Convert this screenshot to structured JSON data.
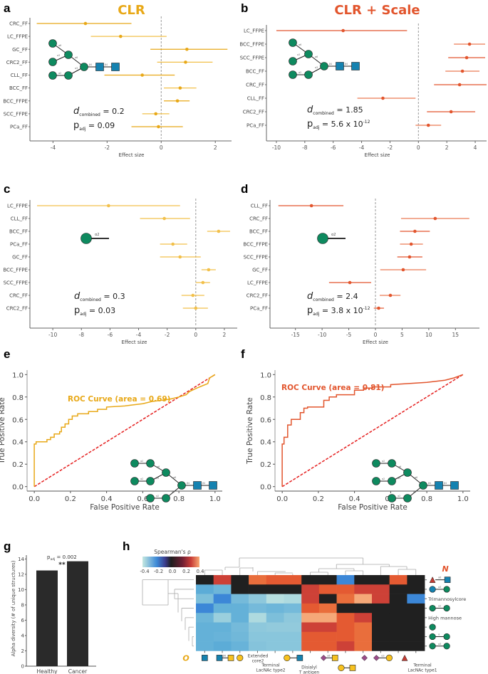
{
  "panels": {
    "a": "a",
    "b": "b",
    "c": "c",
    "d": "d",
    "e": "e",
    "f": "f",
    "g": "g",
    "h": "h"
  },
  "colors": {
    "clr": "#E8A817",
    "clr_light": "#F2C04A",
    "scale": "#E2552D",
    "scale_light": "#EA7A55",
    "glycan_green": "#0E8A5F",
    "glycan_blue": "#1582B0",
    "glycan_yellow": "#F7C21F",
    "glycan_purple": "#9B4C8A",
    "glycan_red": "#C23A32",
    "diag_red": "#E51F1F"
  },
  "chart_data": [
    {
      "id": "a",
      "type": "forest",
      "title": "CLR",
      "xlabel": "Effect size",
      "xlim": [
        -4.8,
        2.6
      ],
      "xticks": [
        -4,
        -2,
        0,
        2
      ],
      "categories": [
        "CRC_FF",
        "LC_FFPE",
        "GC_FF",
        "CRC2_FF",
        "CLL_FF",
        "BCC_FF",
        "BCC_FFPE",
        "SCC_FFPE",
        "PCa_FF"
      ],
      "estimate": [
        -2.8,
        -1.5,
        0.95,
        0.9,
        -0.7,
        0.7,
        0.6,
        -0.2,
        -0.1
      ],
      "ci_low": [
        -4.6,
        -2.6,
        -0.4,
        -0.15,
        -2.1,
        0.1,
        0.1,
        -0.7,
        -1.1
      ],
      "ci_high": [
        -1.1,
        0.2,
        2.45,
        1.9,
        0.5,
        1.3,
        1.05,
        0.3,
        0.8
      ],
      "d_combined": "0.2",
      "p_adj": "0.09",
      "p_adj_exp": ""
    },
    {
      "id": "b",
      "type": "forest",
      "title": "CLR + Scale",
      "xlabel": "Effect size",
      "xlim": [
        -10.6,
        4.8
      ],
      "xticks": [
        -10,
        -8,
        -6,
        -4,
        -2,
        0,
        2,
        4
      ],
      "categories": [
        "LC_FFPE",
        "BCC_FFPE",
        "SCC_FFPE",
        "BCC_FF",
        "CRC_FF",
        "CLL_FF",
        "CRC2_FF",
        "PCa_FF"
      ],
      "estimate": [
        -5.3,
        3.6,
        3.4,
        3.1,
        2.9,
        -2.5,
        2.3,
        0.7
      ],
      "ci_low": [
        -10.0,
        2.5,
        2.1,
        1.9,
        1.1,
        -4.3,
        0.6,
        -0.2
      ],
      "ci_high": [
        -0.8,
        4.7,
        4.7,
        4.3,
        4.8,
        -0.2,
        4.0,
        1.6
      ],
      "d_combined": "1.85",
      "p_adj": "5.6 x 10",
      "p_adj_exp": "-12"
    },
    {
      "id": "c",
      "type": "forest",
      "title": "",
      "xlabel": "Effect size",
      "xlim": [
        -11.5,
        2.9
      ],
      "xticks": [
        -10,
        -8,
        -6,
        -4,
        -2,
        0,
        2
      ],
      "categories": [
        "LC_FFPE",
        "CLL_FF",
        "BCC_FF",
        "PCa_FF",
        "GC_FF",
        "BCC_FFPE",
        "SCC_FFPE",
        "CRC_FF",
        "CRC2_FF"
      ],
      "estimate": [
        -6.1,
        -2.2,
        1.6,
        -1.6,
        -1.1,
        0.9,
        0.5,
        -0.2,
        0.0
      ],
      "ci_low": [
        -11.1,
        -3.9,
        0.8,
        -2.5,
        -2.5,
        0.4,
        0.0,
        -1.0,
        -0.9
      ],
      "ci_high": [
        -1.1,
        -0.4,
        2.4,
        -0.6,
        0.35,
        1.4,
        1.0,
        0.6,
        0.85
      ],
      "d_combined": "0.3",
      "p_adj": "0.03",
      "p_adj_exp": ""
    },
    {
      "id": "d",
      "type": "forest",
      "title": "",
      "xlabel": "Effect size",
      "xlim": [
        -19.5,
        19.5
      ],
      "xticks": [
        -15,
        -10,
        -5,
        0,
        5,
        10,
        15
      ],
      "categories": [
        "CLL_FF",
        "CRC_FF",
        "BCC_FF",
        "BCC_FFPE",
        "SCC_FFPE",
        "GC_FF",
        "LC_FFPE",
        "CRC2_FF",
        "PCa_FF"
      ],
      "estimate": [
        -12.0,
        11.2,
        7.4,
        6.7,
        6.4,
        5.2,
        -4.8,
        2.8,
        0.6
      ],
      "ci_low": [
        -18.2,
        4.8,
        4.6,
        4.6,
        4.1,
        0.9,
        -8.7,
        0.8,
        -0.3
      ],
      "ci_high": [
        -6.0,
        17.6,
        10.2,
        8.9,
        8.8,
        9.5,
        -0.8,
        4.7,
        1.6
      ],
      "d_combined": "2.4",
      "p_adj": "3.8 x 10",
      "p_adj_exp": "-12"
    },
    {
      "id": "e",
      "type": "line",
      "title": "",
      "xlabel": "False Positive Rate",
      "ylabel": "True Positive Rate",
      "xlim": [
        -0.04,
        1.04
      ],
      "ylim": [
        -0.04,
        1.04
      ],
      "xticks": [
        "0.0",
        "0.2",
        "0.4",
        "0.6",
        "0.8",
        "1.0"
      ],
      "yticks": [
        "0.0",
        "0.2",
        "0.4",
        "0.6",
        "0.8",
        "1.0"
      ],
      "legend": "ROC Curve (area = 0.69)",
      "x": [
        0.0,
        0.0,
        0.01,
        0.01,
        0.04,
        0.07,
        0.07,
        0.09,
        0.09,
        0.11,
        0.11,
        0.14,
        0.14,
        0.15,
        0.15,
        0.17,
        0.17,
        0.19,
        0.19,
        0.21,
        0.21,
        0.24,
        0.24,
        0.3,
        0.3,
        0.35,
        0.35,
        0.4,
        0.4,
        0.5,
        0.55,
        0.6,
        0.65,
        0.7,
        0.75,
        0.8,
        0.84,
        0.86,
        0.9,
        0.93,
        0.96,
        0.97,
        1.0
      ],
      "y": [
        0.0,
        0.38,
        0.38,
        0.4,
        0.4,
        0.4,
        0.42,
        0.42,
        0.44,
        0.44,
        0.47,
        0.47,
        0.49,
        0.49,
        0.53,
        0.53,
        0.56,
        0.56,
        0.6,
        0.6,
        0.63,
        0.63,
        0.65,
        0.65,
        0.67,
        0.67,
        0.69,
        0.69,
        0.71,
        0.72,
        0.73,
        0.74,
        0.76,
        0.77,
        0.78,
        0.8,
        0.82,
        0.85,
        0.88,
        0.9,
        0.92,
        0.97,
        1.0
      ],
      "diagonal": true
    },
    {
      "id": "f",
      "type": "line",
      "title": "",
      "xlabel": "False Positive Rate",
      "ylabel": "True Positive Rate",
      "xlim": [
        -0.04,
        1.04
      ],
      "ylim": [
        -0.04,
        1.04
      ],
      "xticks": [
        "0.0",
        "0.2",
        "0.4",
        "0.6",
        "0.8",
        "1.0"
      ],
      "yticks": [
        "0.0",
        "0.2",
        "0.4",
        "0.6",
        "0.8",
        "1.0"
      ],
      "legend": "ROC Curve (area = 0.81)",
      "x": [
        0.0,
        0.0,
        0.01,
        0.01,
        0.03,
        0.03,
        0.05,
        0.05,
        0.06,
        0.06,
        0.1,
        0.1,
        0.12,
        0.12,
        0.14,
        0.14,
        0.23,
        0.23,
        0.26,
        0.26,
        0.3,
        0.3,
        0.33,
        0.33,
        0.4,
        0.4,
        0.45,
        0.45,
        0.5,
        0.5,
        0.6,
        0.6,
        0.7,
        0.8,
        0.9,
        0.95,
        1.0
      ],
      "y": [
        0.0,
        0.38,
        0.38,
        0.44,
        0.44,
        0.55,
        0.55,
        0.6,
        0.6,
        0.6,
        0.6,
        0.66,
        0.66,
        0.7,
        0.7,
        0.71,
        0.71,
        0.77,
        0.77,
        0.8,
        0.8,
        0.82,
        0.82,
        0.82,
        0.82,
        0.86,
        0.86,
        0.88,
        0.88,
        0.89,
        0.89,
        0.91,
        0.92,
        0.93,
        0.95,
        0.97,
        1.0
      ],
      "diagonal": true
    },
    {
      "id": "g",
      "type": "bar",
      "title": "",
      "xlabel": "",
      "ylabel": "Alpha diversity (# of unique structures)",
      "ylim": [
        0,
        14.5
      ],
      "yticks": [
        0,
        2,
        4,
        6,
        8,
        10,
        12,
        14
      ],
      "categories": [
        "Healthy",
        "Cancer"
      ],
      "values": [
        12.5,
        13.7
      ],
      "annotation": "p",
      "annotation_sub": "adj",
      "annotation_value": " = 0.002",
      "significance": "**"
    },
    {
      "id": "h",
      "type": "heatmap",
      "title": "Spearman's ρ",
      "colorbar_ticks": [
        "-0.4",
        "-0.2",
        "0.0",
        "0.2",
        "0.4"
      ],
      "clim": [
        -0.4,
        0.4
      ],
      "row_labels": [
        "Fuc-a6-GlcNAc motif",
        "GlcNAc-a3-Man motif",
        "Trimannosylcore",
        "Man-a2-Man motif",
        "High mannose",
        "Man",
        "Man-a-Man motif",
        "Man-a3-Man motif"
      ],
      "row_text": [
        "",
        "",
        "Trimannosylcore",
        "",
        "High mannose",
        "",
        "",
        ""
      ],
      "row_group_label": "N",
      "col_group_label": "O",
      "col_text": [
        "",
        "",
        "",
        "Extended core2",
        "",
        "Terminal LacNAc type2",
        "",
        "Disialyl T antigen",
        "",
        "",
        "",
        "",
        "Terminal LacNAc type1"
      ],
      "values": [
        [
          0.0,
          0.3,
          0.0,
          0.4,
          0.36,
          0.37,
          0.0,
          0.0,
          -0.33,
          0.0,
          0.0,
          0.36,
          0.0
        ],
        [
          -0.3,
          -0.26,
          0.0,
          0.0,
          0.0,
          0.0,
          0.33,
          0.34,
          0.37,
          0.3,
          0.32,
          0.0,
          0.0
        ],
        [
          -0.22,
          -0.34,
          -0.24,
          -0.18,
          -0.08,
          -0.1,
          0.32,
          0.0,
          0.38,
          0.45,
          0.3,
          0.0,
          -0.34
        ],
        [
          -0.32,
          -0.28,
          -0.28,
          -0.24,
          -0.26,
          -0.24,
          0.37,
          0.4,
          0.0,
          0.0,
          0.0,
          0.0,
          0.0
        ],
        [
          -0.26,
          -0.15,
          -0.28,
          -0.1,
          -0.22,
          -0.18,
          0.44,
          0.44,
          0.37,
          0.3,
          0.0,
          0.0,
          0.0
        ],
        [
          -0.28,
          -0.28,
          -0.24,
          -0.18,
          -0.17,
          -0.17,
          0.33,
          0.33,
          0.35,
          0.38,
          0.0,
          0.0,
          0.0
        ],
        [
          -0.28,
          -0.27,
          -0.25,
          -0.19,
          -0.19,
          -0.19,
          0.36,
          0.36,
          0.34,
          0.38,
          0.0,
          0.0,
          0.0
        ],
        [
          -0.28,
          -0.3,
          -0.27,
          -0.2,
          -0.19,
          -0.19,
          0.37,
          0.34,
          0.31,
          0.38,
          0.0,
          0.0,
          0.0
        ]
      ]
    }
  ]
}
